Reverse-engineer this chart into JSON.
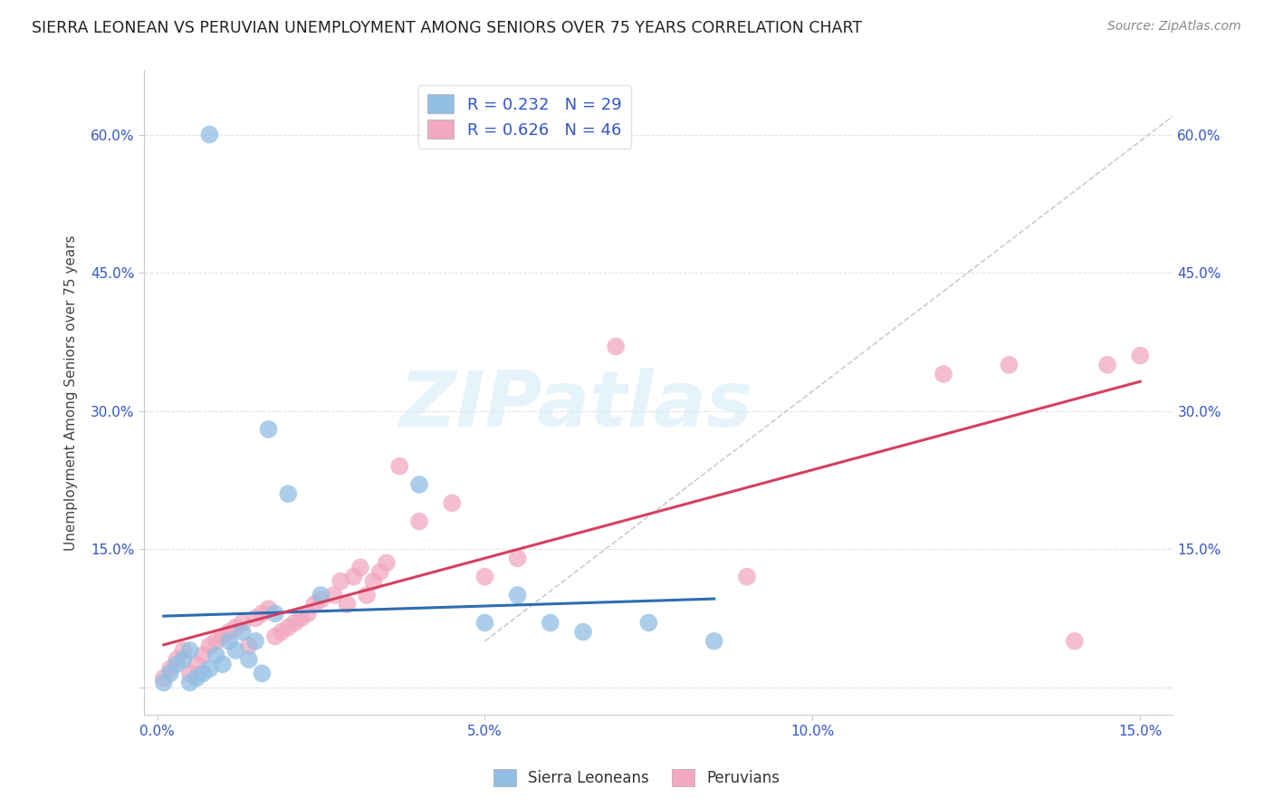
{
  "title": "SIERRA LEONEAN VS PERUVIAN UNEMPLOYMENT AMONG SENIORS OVER 75 YEARS CORRELATION CHART",
  "source": "Source: ZipAtlas.com",
  "ylabel": "Unemployment Among Seniors over 75 years",
  "xlim": [
    -0.002,
    0.155
  ],
  "ylim": [
    -0.03,
    0.67
  ],
  "xticks": [
    0.0,
    0.05,
    0.1,
    0.15
  ],
  "xticklabels": [
    "0.0%",
    "5.0%",
    "10.0%",
    "15.0%"
  ],
  "yticks": [
    0.0,
    0.15,
    0.3,
    0.45,
    0.6
  ],
  "yleft_labels": [
    "",
    "15.0%",
    "30.0%",
    "45.0%",
    "60.0%"
  ],
  "yright_labels": [
    "",
    "15.0%",
    "30.0%",
    "45.0%",
    "60.0%"
  ],
  "sierra_R": 0.232,
  "sierra_N": 29,
  "peruvian_R": 0.626,
  "peruvian_N": 46,
  "sierra_color": "#92BEE4",
  "peruvian_color": "#F2A8C0",
  "sierra_line_color": "#2E6DB0",
  "peruvian_line_color": "#D44060",
  "ref_line_color": "#C0C8D0",
  "legend_text_color": "#3355CC",
  "tick_color": "#3355CC",
  "background_color": "#FFFFFF",
  "grid_color": "#E0E0E8",
  "watermark": "ZIPatlas",
  "sierra_x": [
    0.008,
    0.001,
    0.002,
    0.003,
    0.004,
    0.005,
    0.005,
    0.006,
    0.007,
    0.008,
    0.009,
    0.01,
    0.011,
    0.012,
    0.013,
    0.014,
    0.015,
    0.016,
    0.017,
    0.018,
    0.02,
    0.025,
    0.04,
    0.05,
    0.055,
    0.06,
    0.065,
    0.075,
    0.085
  ],
  "sierra_y": [
    0.6,
    0.005,
    0.015,
    0.025,
    0.03,
    0.04,
    0.005,
    0.01,
    0.015,
    0.02,
    0.035,
    0.025,
    0.05,
    0.04,
    0.06,
    0.03,
    0.05,
    0.015,
    0.28,
    0.08,
    0.21,
    0.1,
    0.22,
    0.07,
    0.1,
    0.07,
    0.06,
    0.07,
    0.05
  ],
  "peruvian_x": [
    0.001,
    0.002,
    0.003,
    0.004,
    0.005,
    0.006,
    0.007,
    0.008,
    0.009,
    0.01,
    0.011,
    0.012,
    0.013,
    0.014,
    0.015,
    0.016,
    0.017,
    0.018,
    0.019,
    0.02,
    0.021,
    0.022,
    0.023,
    0.024,
    0.025,
    0.027,
    0.028,
    0.029,
    0.03,
    0.031,
    0.032,
    0.033,
    0.034,
    0.035,
    0.037,
    0.04,
    0.045,
    0.05,
    0.055,
    0.07,
    0.09,
    0.12,
    0.13,
    0.14,
    0.145,
    0.15
  ],
  "peruvian_y": [
    0.01,
    0.02,
    0.03,
    0.04,
    0.015,
    0.025,
    0.035,
    0.045,
    0.05,
    0.055,
    0.06,
    0.065,
    0.07,
    0.045,
    0.075,
    0.08,
    0.085,
    0.055,
    0.06,
    0.065,
    0.07,
    0.075,
    0.08,
    0.09,
    0.095,
    0.1,
    0.115,
    0.09,
    0.12,
    0.13,
    0.1,
    0.115,
    0.125,
    0.135,
    0.24,
    0.18,
    0.2,
    0.12,
    0.14,
    0.37,
    0.12,
    0.34,
    0.35,
    0.05,
    0.35,
    0.36
  ]
}
